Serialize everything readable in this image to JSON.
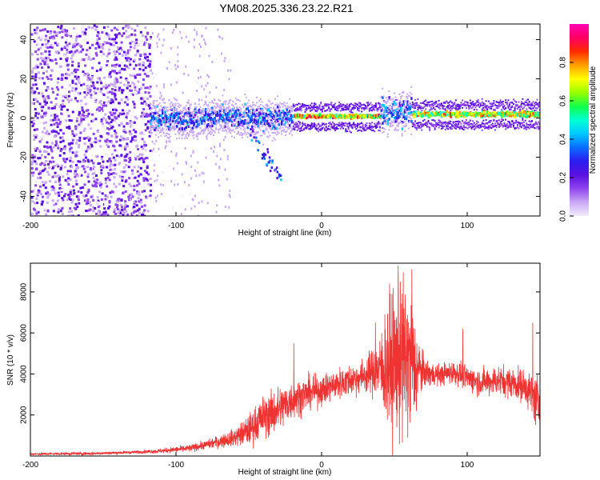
{
  "title": "YM08.2025.336.23.22.R21",
  "colors": {
    "snr_line": "#ee3333",
    "axis": "#000000",
    "colormap": [
      "#f3ecfd",
      "#c9a8f5",
      "#8f45ee",
      "#5a10e0",
      "#2a1ef0",
      "#0a6cff",
      "#00c8ff",
      "#00ffd2",
      "#12ff4a",
      "#9aff00",
      "#ffff00",
      "#ffa000",
      "#ff2a00",
      "#ff0064",
      "#ff00b4"
    ]
  },
  "chart_data": [
    {
      "type": "heatmap",
      "name": "spectrogram",
      "title": "YM08.2025.336.23.22.R21",
      "xlabel": "Height of straight line (km)",
      "ylabel": "Frequency (Hz)",
      "xlim": [
        -200,
        150
      ],
      "ylim": [
        -50,
        48
      ],
      "xticks": [
        -200,
        -100,
        0,
        100
      ],
      "yticks": [
        -40,
        -20,
        0,
        20,
        40
      ],
      "colorbar": {
        "label": "Normalized spectral amplitude",
        "range": [
          0,
          1
        ],
        "ticks": [
          0,
          0.2,
          0.4,
          0.6,
          0.8
        ]
      },
      "description_bands": [
        {
          "x_range": [
            -200,
            -118
          ],
          "pattern": "broadband noise",
          "amplitude": 0.15
        },
        {
          "x_range": [
            -118,
            -20
          ],
          "pattern": "scattered near 0 Hz",
          "amplitude": 0.45
        },
        {
          "x_range": [
            -20,
            40
          ],
          "pattern": "narrow line at ~1 Hz",
          "amplitude": 0.95
        },
        {
          "x_range": [
            40,
            62
          ],
          "pattern": "spread near 0-8 Hz",
          "amplitude": 0.5
        },
        {
          "x_range": [
            62,
            150
          ],
          "pattern": "narrow line at ~2 Hz",
          "amplitude": 0.9
        }
      ]
    },
    {
      "type": "line",
      "name": "snr",
      "xlabel": "Height of straight line (km)",
      "ylabel": "SNR (10 * v/v)",
      "xlim": [
        -200,
        150
      ],
      "ylim": [
        0,
        9400
      ],
      "xticks": [
        -200,
        -100,
        0,
        100
      ],
      "yticks": [
        2000,
        4000,
        6000,
        8000
      ],
      "series": [
        {
          "name": "SNR",
          "envelope_x": [
            -200,
            -160,
            -130,
            -110,
            -90,
            -75,
            -60,
            -50,
            -45,
            -40,
            -30,
            -20,
            -10,
            0,
            10,
            20,
            30,
            38,
            42,
            48,
            55,
            60,
            63,
            66,
            70,
            75,
            80,
            85,
            90,
            95,
            100,
            110,
            120,
            130,
            140,
            145,
            150
          ],
          "envelope_y": [
            100,
            120,
            180,
            250,
            380,
            620,
            900,
            1250,
            1600,
            1900,
            2250,
            2750,
            3050,
            3200,
            3500,
            3700,
            3950,
            4200,
            4300,
            4500,
            4700,
            4600,
            4400,
            4200,
            4100,
            4000,
            3950,
            4000,
            4100,
            4000,
            3800,
            3600,
            3700,
            3600,
            3400,
            2900,
            2500
          ],
          "noise_amp_x": [
            -200,
            -120,
            -80,
            -60,
            -45,
            -30,
            -20,
            0,
            30,
            40,
            45,
            55,
            62,
            70,
            80,
            100,
            140,
            150
          ],
          "noise_amp_y": [
            60,
            80,
            200,
            400,
            900,
            1100,
            900,
            700,
            800,
            1500,
            3200,
            3800,
            3200,
            700,
            500,
            600,
            800,
            1400
          ],
          "peaks": [
            {
              "x": -19,
              "y": 5500
            },
            {
              "x": 37,
              "y": 6500
            },
            {
              "x": 54,
              "y": 8500
            },
            {
              "x": 62,
              "y": 9100
            },
            {
              "x": 97,
              "y": 6200
            },
            {
              "x": 145,
              "y": 6500
            }
          ]
        }
      ]
    }
  ]
}
